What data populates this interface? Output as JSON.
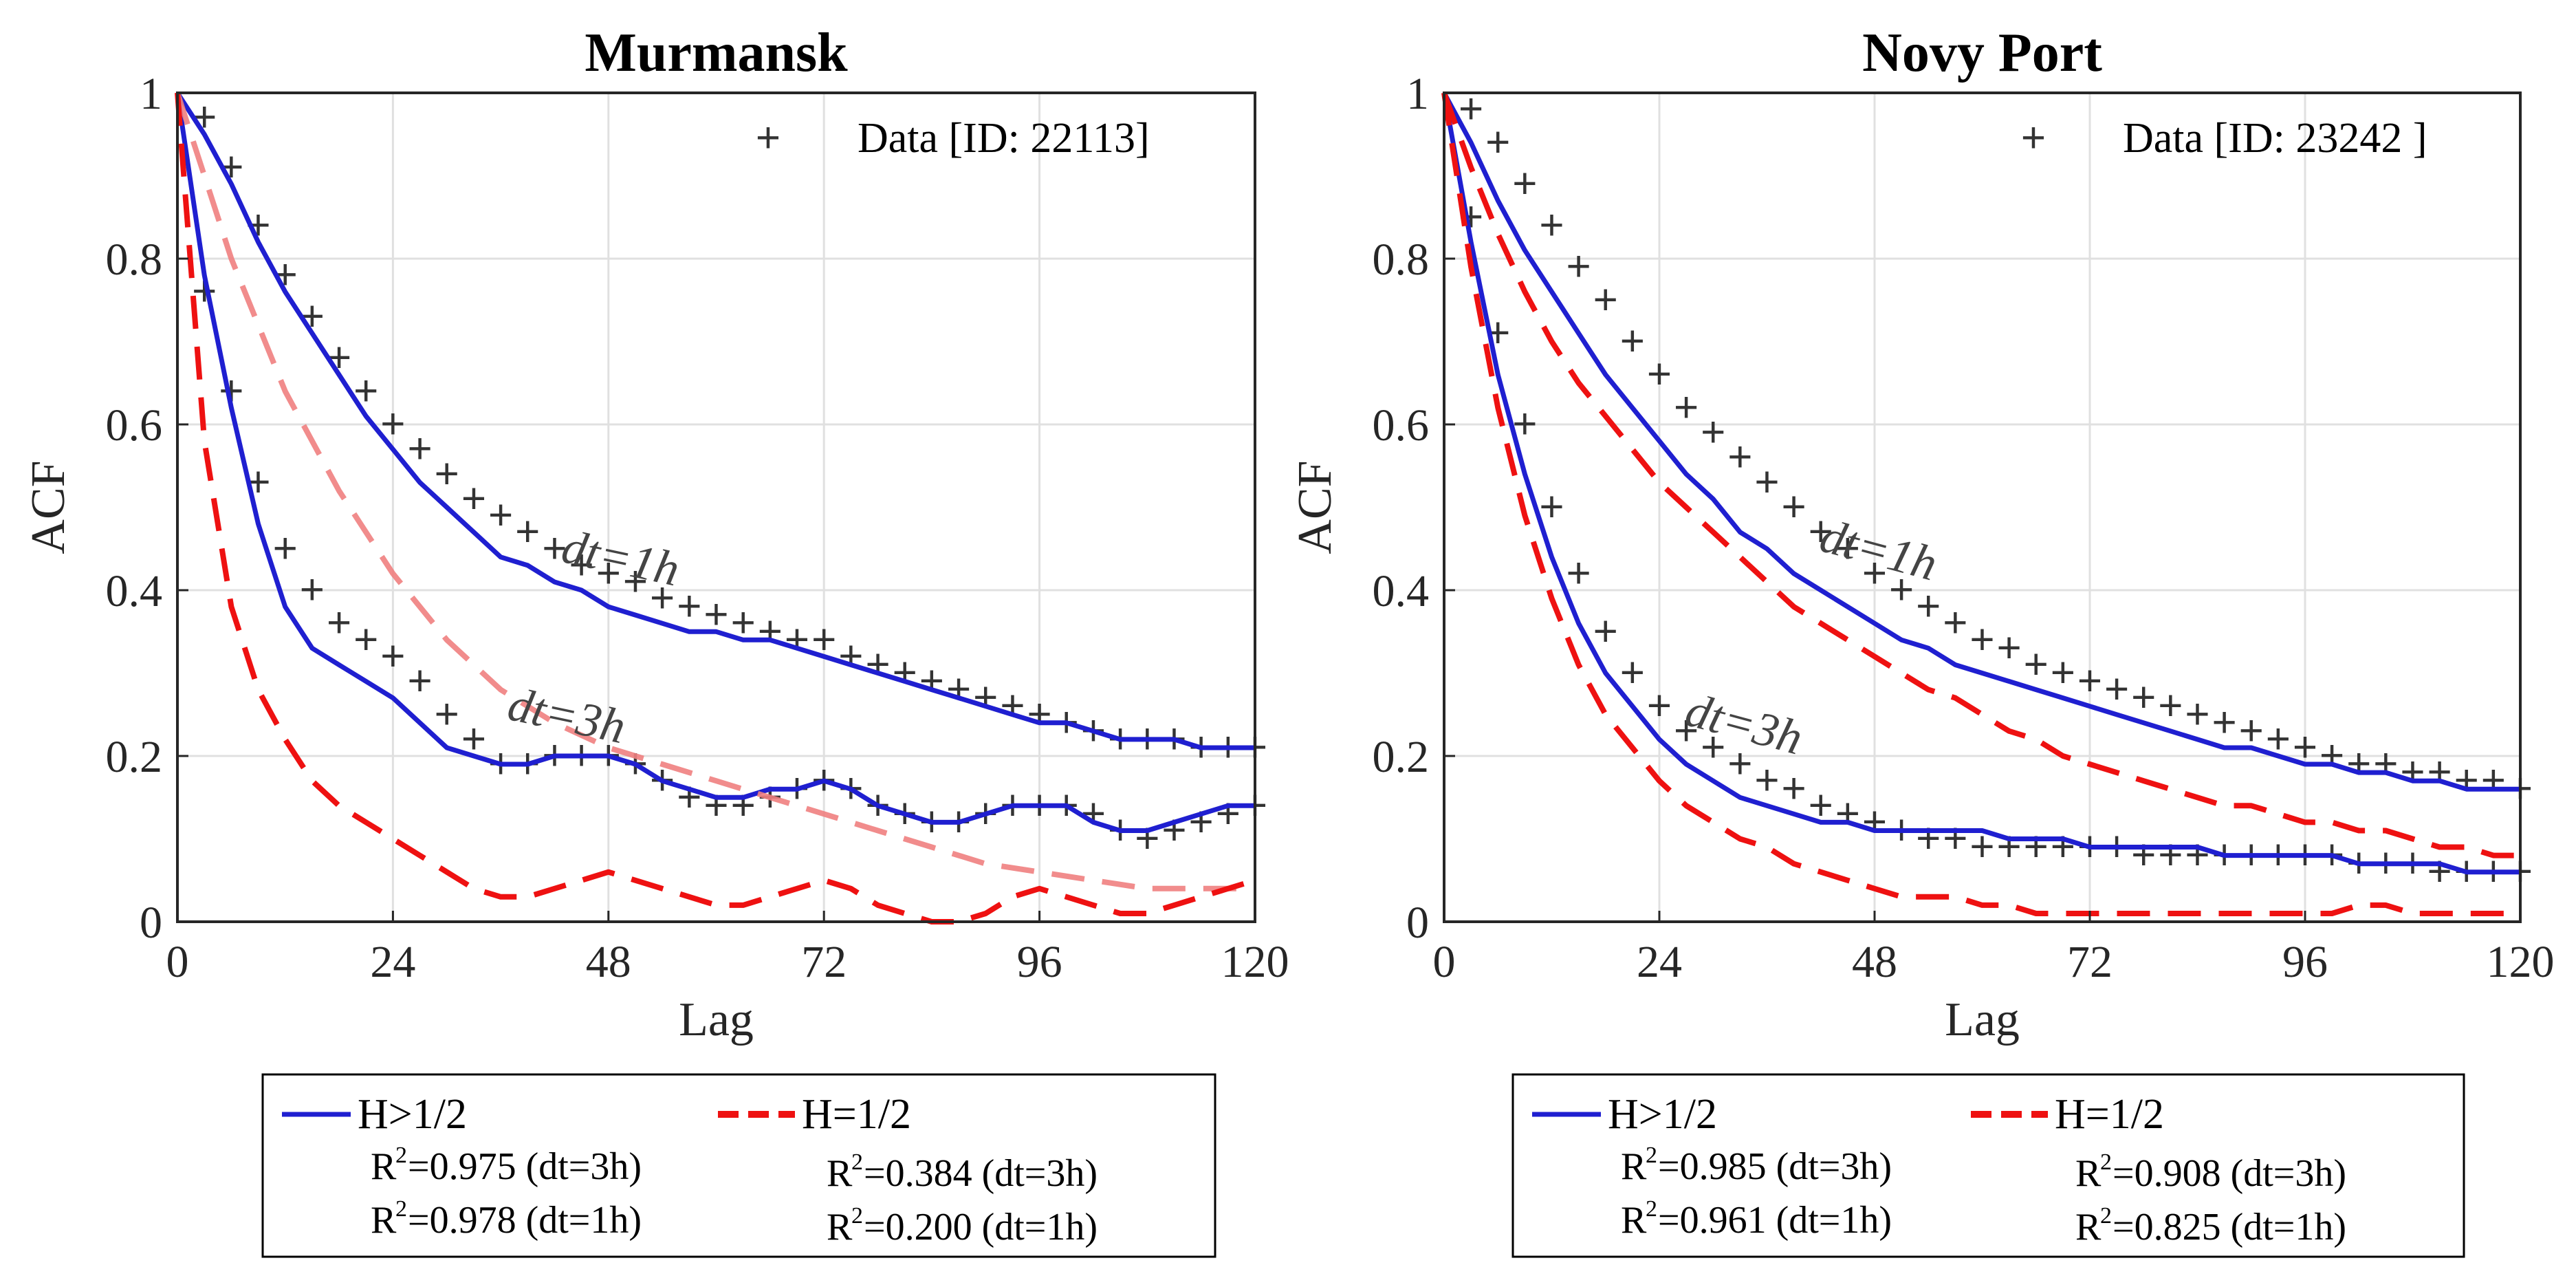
{
  "chart_data": [
    {
      "type": "line",
      "title": "Murmansk",
      "xlabel": "Lag",
      "ylabel": "ACF",
      "xlim": [
        0,
        120
      ],
      "ylim": [
        0,
        1
      ],
      "xticks": [
        0,
        24,
        48,
        72,
        96,
        120
      ],
      "yticks": [
        0,
        0.2,
        0.4,
        0.6,
        0.8,
        1
      ],
      "ytick_labels": [
        "0",
        "0.2",
        "0.4",
        "0.6",
        "0.8",
        "1"
      ],
      "grid": true,
      "data_legend": "Data [ID: 22113]",
      "annotations": [
        {
          "text": "dt=1h",
          "x": 49,
          "y": 0.42,
          "angle": 12
        },
        {
          "text": "dt=3h",
          "x": 43,
          "y": 0.23,
          "angle": 12
        }
      ],
      "series": [
        {
          "style": "data-plus",
          "color": "#333333",
          "x": [
            0,
            3,
            6,
            9,
            12,
            15,
            18,
            21,
            24,
            27,
            30,
            33,
            36,
            39,
            42,
            45,
            48,
            51,
            54,
            57,
            60,
            63,
            66,
            69,
            72,
            75,
            78,
            81,
            84,
            87,
            90,
            93,
            96,
            99,
            102,
            105,
            108,
            111,
            114,
            117,
            120
          ],
          "y": [
            1,
            0.97,
            0.91,
            0.84,
            0.78,
            0.73,
            0.68,
            0.64,
            0.6,
            0.57,
            0.54,
            0.51,
            0.49,
            0.47,
            0.45,
            0.43,
            0.42,
            0.41,
            0.39,
            0.38,
            0.37,
            0.36,
            0.35,
            0.34,
            0.34,
            0.32,
            0.31,
            0.3,
            0.29,
            0.28,
            0.27,
            0.26,
            0.25,
            0.24,
            0.23,
            0.22,
            0.22,
            0.22,
            0.21,
            0.21,
            0.21
          ]
        },
        {
          "style": "data-plus",
          "color": "#333333",
          "x": [
            0,
            3,
            6,
            9,
            12,
            15,
            18,
            21,
            24,
            27,
            30,
            33,
            36,
            39,
            42,
            45,
            48,
            51,
            54,
            57,
            60,
            63,
            66,
            69,
            72,
            75,
            78,
            81,
            84,
            87,
            90,
            93,
            96,
            99,
            102,
            105,
            108,
            111,
            114,
            117,
            120
          ],
          "y": [
            1,
            0.76,
            0.64,
            0.53,
            0.45,
            0.4,
            0.36,
            0.34,
            0.32,
            0.29,
            0.25,
            0.22,
            0.19,
            0.19,
            0.2,
            0.2,
            0.2,
            0.19,
            0.17,
            0.15,
            0.14,
            0.14,
            0.15,
            0.16,
            0.17,
            0.16,
            0.14,
            0.13,
            0.12,
            0.12,
            0.13,
            0.14,
            0.14,
            0.14,
            0.13,
            0.11,
            0.1,
            0.11,
            0.12,
            0.13,
            0.14
          ]
        },
        {
          "style": "solid",
          "color": "#1f1fd0",
          "x": [
            0,
            3,
            6,
            9,
            12,
            15,
            18,
            21,
            24,
            27,
            30,
            33,
            36,
            39,
            42,
            45,
            48,
            51,
            54,
            57,
            60,
            63,
            66,
            69,
            72,
            75,
            78,
            81,
            84,
            87,
            90,
            93,
            96,
            99,
            102,
            105,
            108,
            111,
            114,
            117,
            120
          ],
          "y": [
            1,
            0.95,
            0.89,
            0.82,
            0.76,
            0.71,
            0.66,
            0.61,
            0.57,
            0.53,
            0.5,
            0.47,
            0.44,
            0.43,
            0.41,
            0.4,
            0.38,
            0.37,
            0.36,
            0.35,
            0.35,
            0.34,
            0.34,
            0.33,
            0.32,
            0.31,
            0.3,
            0.29,
            0.28,
            0.27,
            0.26,
            0.25,
            0.24,
            0.24,
            0.23,
            0.22,
            0.22,
            0.22,
            0.21,
            0.21,
            0.21
          ]
        },
        {
          "style": "solid",
          "color": "#1f1fd0",
          "x": [
            0,
            3,
            6,
            9,
            12,
            15,
            18,
            21,
            24,
            27,
            30,
            33,
            36,
            39,
            42,
            45,
            48,
            51,
            54,
            57,
            60,
            63,
            66,
            69,
            72,
            75,
            78,
            81,
            84,
            87,
            90,
            93,
            96,
            99,
            102,
            105,
            108,
            111,
            114,
            117,
            120
          ],
          "y": [
            1,
            0.78,
            0.62,
            0.48,
            0.38,
            0.33,
            0.31,
            0.29,
            0.27,
            0.24,
            0.21,
            0.2,
            0.19,
            0.19,
            0.2,
            0.2,
            0.2,
            0.19,
            0.17,
            0.16,
            0.15,
            0.15,
            0.16,
            0.16,
            0.17,
            0.16,
            0.14,
            0.13,
            0.12,
            0.12,
            0.13,
            0.14,
            0.14,
            0.14,
            0.12,
            0.11,
            0.11,
            0.12,
            0.13,
            0.14,
            0.14
          ]
        },
        {
          "style": "dashed-thin",
          "color": "#f08080",
          "x": [
            0,
            6,
            12,
            18,
            24,
            30,
            36,
            42,
            48,
            54,
            60,
            66,
            72,
            78,
            84,
            90,
            96,
            102,
            108,
            114,
            120
          ],
          "y": [
            1,
            0.8,
            0.64,
            0.52,
            0.42,
            0.34,
            0.28,
            0.24,
            0.21,
            0.19,
            0.17,
            0.15,
            0.13,
            0.11,
            0.09,
            0.07,
            0.06,
            0.05,
            0.04,
            0.04,
            0.04
          ]
        },
        {
          "style": "dashed",
          "color": "#ee1111",
          "x": [
            0,
            3,
            6,
            9,
            12,
            15,
            18,
            21,
            24,
            27,
            30,
            33,
            36,
            39,
            42,
            45,
            48,
            51,
            54,
            57,
            60,
            63,
            66,
            69,
            72,
            75,
            78,
            81,
            84,
            87,
            90,
            93,
            96,
            99,
            102,
            105,
            108,
            111,
            114,
            117,
            120
          ],
          "y": [
            1,
            0.58,
            0.38,
            0.28,
            0.22,
            0.17,
            0.14,
            0.12,
            0.1,
            0.08,
            0.06,
            0.04,
            0.03,
            0.03,
            0.04,
            0.05,
            0.06,
            0.05,
            0.04,
            0.03,
            0.02,
            0.02,
            0.03,
            0.04,
            0.05,
            0.04,
            0.02,
            0.01,
            0.0,
            0.0,
            0.01,
            0.03,
            0.04,
            0.03,
            0.02,
            0.01,
            0.01,
            0.02,
            0.03,
            0.04,
            0.05
          ]
        }
      ]
    },
    {
      "type": "line",
      "title": "Novy Port",
      "xlabel": "Lag",
      "ylabel": "ACF",
      "xlim": [
        0,
        120
      ],
      "ylim": [
        0,
        1
      ],
      "xticks": [
        0,
        24,
        48,
        72,
        96,
        120
      ],
      "yticks": [
        0,
        0.2,
        0.4,
        0.6,
        0.8,
        1
      ],
      "ytick_labels": [
        "0",
        "0.2",
        "0.4",
        "0.6",
        "0.8",
        "1"
      ],
      "grid": true,
      "data_legend": "Data [ID: 23242 ]",
      "annotations": [
        {
          "text": "dt=1h",
          "x": 48,
          "y": 0.43,
          "angle": 15
        },
        {
          "text": "dt=3h",
          "x": 33,
          "y": 0.22,
          "angle": 15
        }
      ],
      "series": [
        {
          "style": "data-plus",
          "color": "#333333",
          "x": [
            0,
            3,
            6,
            9,
            12,
            15,
            18,
            21,
            24,
            27,
            30,
            33,
            36,
            39,
            42,
            45,
            48,
            51,
            54,
            57,
            60,
            63,
            66,
            69,
            72,
            75,
            78,
            81,
            84,
            87,
            90,
            93,
            96,
            99,
            102,
            105,
            108,
            111,
            114,
            117,
            120
          ],
          "y": [
            1,
            0.98,
            0.94,
            0.89,
            0.84,
            0.79,
            0.75,
            0.7,
            0.66,
            0.62,
            0.59,
            0.56,
            0.53,
            0.5,
            0.47,
            0.45,
            0.42,
            0.4,
            0.38,
            0.36,
            0.34,
            0.33,
            0.31,
            0.3,
            0.29,
            0.28,
            0.27,
            0.26,
            0.25,
            0.24,
            0.23,
            0.22,
            0.21,
            0.2,
            0.19,
            0.19,
            0.18,
            0.18,
            0.17,
            0.17,
            0.16
          ]
        },
        {
          "style": "data-plus",
          "color": "#333333",
          "x": [
            0,
            3,
            6,
            9,
            12,
            15,
            18,
            21,
            24,
            27,
            30,
            33,
            36,
            39,
            42,
            45,
            48,
            51,
            54,
            57,
            60,
            63,
            66,
            69,
            72,
            75,
            78,
            81,
            84,
            87,
            90,
            93,
            96,
            99,
            102,
            105,
            108,
            111,
            114,
            117,
            120
          ],
          "y": [
            1,
            0.85,
            0.71,
            0.6,
            0.5,
            0.42,
            0.35,
            0.3,
            0.26,
            0.23,
            0.21,
            0.19,
            0.17,
            0.16,
            0.14,
            0.13,
            0.12,
            0.11,
            0.1,
            0.1,
            0.09,
            0.09,
            0.09,
            0.09,
            0.09,
            0.09,
            0.08,
            0.08,
            0.08,
            0.08,
            0.08,
            0.08,
            0.08,
            0.08,
            0.07,
            0.07,
            0.07,
            0.06,
            0.06,
            0.06,
            0.06
          ]
        },
        {
          "style": "solid",
          "color": "#1f1fd0",
          "x": [
            0,
            3,
            6,
            9,
            12,
            15,
            18,
            21,
            24,
            27,
            30,
            33,
            36,
            39,
            42,
            45,
            48,
            51,
            54,
            57,
            60,
            63,
            66,
            69,
            72,
            75,
            78,
            81,
            84,
            87,
            90,
            93,
            96,
            99,
            102,
            105,
            108,
            111,
            114,
            117,
            120
          ],
          "y": [
            1,
            0.94,
            0.87,
            0.81,
            0.76,
            0.71,
            0.66,
            0.62,
            0.58,
            0.54,
            0.51,
            0.47,
            0.45,
            0.42,
            0.4,
            0.38,
            0.36,
            0.34,
            0.33,
            0.31,
            0.3,
            0.29,
            0.28,
            0.27,
            0.26,
            0.25,
            0.24,
            0.23,
            0.22,
            0.21,
            0.21,
            0.2,
            0.19,
            0.19,
            0.18,
            0.18,
            0.17,
            0.17,
            0.16,
            0.16,
            0.16
          ]
        },
        {
          "style": "solid",
          "color": "#1f1fd0",
          "x": [
            0,
            3,
            6,
            9,
            12,
            15,
            18,
            21,
            24,
            27,
            30,
            33,
            36,
            39,
            42,
            45,
            48,
            51,
            54,
            57,
            60,
            63,
            66,
            69,
            72,
            75,
            78,
            81,
            84,
            87,
            90,
            93,
            96,
            99,
            102,
            105,
            108,
            111,
            114,
            117,
            120
          ],
          "y": [
            1,
            0.82,
            0.66,
            0.54,
            0.44,
            0.36,
            0.3,
            0.26,
            0.22,
            0.19,
            0.17,
            0.15,
            0.14,
            0.13,
            0.12,
            0.12,
            0.11,
            0.11,
            0.11,
            0.11,
            0.11,
            0.1,
            0.1,
            0.1,
            0.09,
            0.09,
            0.09,
            0.09,
            0.09,
            0.08,
            0.08,
            0.08,
            0.08,
            0.08,
            0.07,
            0.07,
            0.07,
            0.07,
            0.06,
            0.06,
            0.06
          ]
        },
        {
          "style": "dashed",
          "color": "#ee1111",
          "x": [
            0,
            3,
            6,
            9,
            12,
            15,
            18,
            21,
            24,
            27,
            30,
            33,
            36,
            39,
            42,
            45,
            48,
            51,
            54,
            57,
            60,
            63,
            66,
            69,
            72,
            75,
            78,
            81,
            84,
            87,
            90,
            93,
            96,
            99,
            102,
            105,
            108,
            111,
            114,
            117,
            120
          ],
          "y": [
            1,
            0.91,
            0.83,
            0.76,
            0.7,
            0.65,
            0.61,
            0.57,
            0.53,
            0.5,
            0.47,
            0.44,
            0.41,
            0.38,
            0.36,
            0.34,
            0.32,
            0.3,
            0.28,
            0.27,
            0.25,
            0.23,
            0.22,
            0.2,
            0.19,
            0.18,
            0.17,
            0.16,
            0.15,
            0.14,
            0.14,
            0.13,
            0.12,
            0.12,
            0.11,
            0.11,
            0.1,
            0.09,
            0.09,
            0.08,
            0.08
          ]
        },
        {
          "style": "dashed",
          "color": "#ee1111",
          "x": [
            0,
            3,
            6,
            9,
            12,
            15,
            18,
            21,
            24,
            27,
            30,
            33,
            36,
            39,
            42,
            45,
            48,
            51,
            54,
            57,
            60,
            63,
            66,
            69,
            72,
            75,
            78,
            81,
            84,
            87,
            90,
            93,
            96,
            99,
            102,
            105,
            108,
            111,
            114,
            117,
            120
          ],
          "y": [
            1,
            0.79,
            0.62,
            0.49,
            0.39,
            0.31,
            0.25,
            0.21,
            0.17,
            0.14,
            0.12,
            0.1,
            0.09,
            0.07,
            0.06,
            0.05,
            0.04,
            0.03,
            0.03,
            0.03,
            0.02,
            0.02,
            0.01,
            0.01,
            0.01,
            0.01,
            0.01,
            0.01,
            0.01,
            0.01,
            0.01,
            0.01,
            0.01,
            0.01,
            0.02,
            0.02,
            0.01,
            0.01,
            0.01,
            0.01,
            0.01
          ]
        }
      ]
    }
  ],
  "legends": [
    {
      "solid_label": "H>1/2",
      "dashed_label": "H=1/2",
      "solid_r2": [
        "=0.975 (dt=3h)",
        "=0.978 (dt=1h)"
      ],
      "dashed_r2": [
        "=0.384 (dt=3h)",
        "=0.200 (dt=1h)"
      ]
    },
    {
      "solid_label": "H>1/2",
      "dashed_label": "H=1/2",
      "solid_r2": [
        "=0.985 (dt=3h)",
        "=0.961 (dt=1h)"
      ],
      "dashed_r2": [
        "=0.908 (dt=3h)",
        "=0.825 (dt=1h)"
      ]
    }
  ],
  "legend_r": "R",
  "legend_sup": "2",
  "plus_glyph": "+"
}
